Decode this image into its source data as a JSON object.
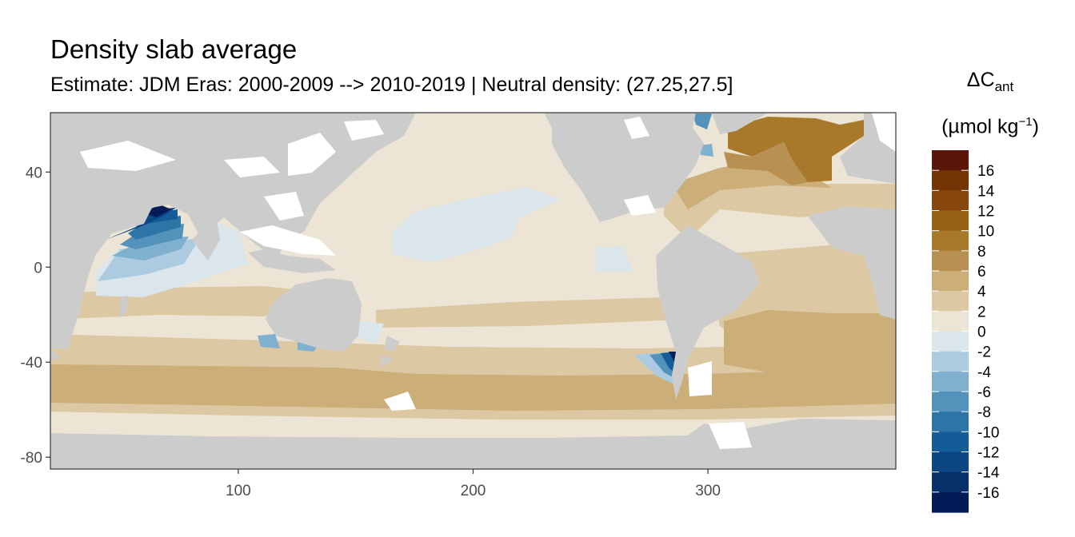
{
  "title": "Density slab average",
  "subtitle": "Estimate: JDM Eras: 2000-2009 --> 2010-2019 | Neutral density: (27.25,27.5]",
  "legend": {
    "title_symbol": "ΔC",
    "title_subscript": "ant",
    "unit_prefix": "(µmol kg",
    "unit_superscript": "−1",
    "unit_suffix": ")",
    "breaks": [
      "16",
      "14",
      "12",
      "10",
      "8",
      "6",
      "4",
      "2",
      "0",
      "-2",
      "-4",
      "-6",
      "-8",
      "-10",
      "-12",
      "-14",
      "-16"
    ],
    "colors": [
      "#5a1608",
      "#743505",
      "#87460c",
      "#986216",
      "#a8792a",
      "#b89152",
      "#cbae78",
      "#dcc8a2",
      "#ece4d4",
      "#dbe6ec",
      "#adcbe0",
      "#7fb0cd",
      "#5393bb",
      "#2d75a7",
      "#145c97",
      "#0b4683",
      "#07306a",
      "#031c58"
    ]
  },
  "map": {
    "land_color": "#cccccc",
    "missing_color": "#ffffff",
    "x_axis": {
      "ticks": [
        100,
        200,
        300
      ],
      "range": [
        20,
        380
      ]
    },
    "y_axis": {
      "ticks": [
        40,
        0,
        -40,
        -80
      ],
      "range": [
        -85,
        65
      ]
    }
  }
}
